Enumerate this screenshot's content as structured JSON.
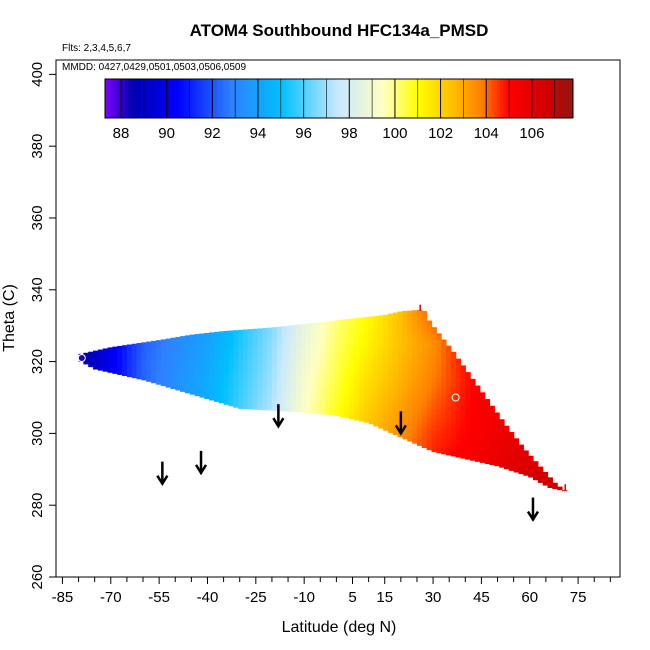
{
  "chart_data": {
    "type": "heatmap",
    "title": "ATOM4 Southbound HFC134a_PMSD",
    "subtitle_flights": "Flts: 2,3,4,5,6,7",
    "subtitle_dates": "MMDD: 0427,0429,0501,0503,0506,0509",
    "xlabel": "Latitude (deg N)",
    "ylabel": "Theta (C)",
    "xlim": [
      -87,
      88
    ],
    "ylim": [
      260,
      404
    ],
    "x_ticks": [
      -85,
      -70,
      -55,
      -40,
      -25,
      -10,
      5,
      15,
      30,
      45,
      60,
      75
    ],
    "x_minor_ticks": [
      -80,
      -75,
      -65,
      -60,
      -50,
      -45,
      -35,
      -30,
      -20,
      -15,
      -5,
      0,
      10,
      20,
      25,
      35,
      40,
      50,
      55,
      65,
      70,
      80,
      85
    ],
    "y_ticks": [
      260,
      280,
      300,
      320,
      340,
      360,
      380,
      400
    ],
    "colorbar": {
      "min": 87.3,
      "max": 107.8,
      "ticks": [
        88,
        90,
        92,
        94,
        96,
        98,
        100,
        102,
        104,
        106
      ],
      "colors": [
        "#8000ff",
        "#0000b0",
        "#0000ff",
        "#2f80ff",
        "#00bfff",
        "#c8e8ff",
        "#ffffc0",
        "#ffff00",
        "#ffc000",
        "#ff8000",
        "#ff0000",
        "#cc0000",
        "#8b1a1a"
      ],
      "color_stops": [
        87.3,
        88.5,
        90.5,
        92.8,
        95.0,
        97.5,
        99.5,
        101.0,
        102.5,
        103.8,
        105.0,
        106.8,
        107.8
      ]
    },
    "field": {
      "lat_start": -80,
      "lat_end": 71,
      "theta_top": [
        [
          -80,
          322
        ],
        [
          -70,
          324
        ],
        [
          -55,
          326
        ],
        [
          -45,
          327.5
        ],
        [
          -35,
          328.5
        ],
        [
          -20,
          329.5
        ],
        [
          -10,
          330.5
        ],
        [
          5,
          332
        ],
        [
          15,
          333
        ],
        [
          20,
          334
        ],
        [
          27,
          334.5
        ],
        [
          29,
          331
        ],
        [
          36,
          323
        ],
        [
          44,
          313
        ],
        [
          52,
          303
        ],
        [
          58,
          296
        ],
        [
          64,
          290
        ],
        [
          68,
          286
        ],
        [
          71,
          284
        ]
      ],
      "theta_bottom": [
        [
          -80,
          320.5
        ],
        [
          -75,
          318
        ],
        [
          -60,
          315
        ],
        [
          -45,
          311
        ],
        [
          -30,
          307
        ],
        [
          -20,
          306.5
        ],
        [
          -10,
          306
        ],
        [
          0,
          305
        ],
        [
          10,
          303
        ],
        [
          20,
          299
        ],
        [
          30,
          295
        ],
        [
          40,
          293
        ],
        [
          50,
          291
        ],
        [
          60,
          288
        ],
        [
          66,
          285
        ],
        [
          71,
          284
        ]
      ],
      "grid": {
        "lat": [
          -80,
          -60,
          -40,
          -20,
          -10,
          0,
          10,
          20,
          30,
          40,
          50,
          60,
          71
        ],
        "theta": [
          284,
          300,
          315,
          325,
          335
        ],
        "values": [
          [
            88.0,
            92.5,
            94.5,
            97.5,
            99.5,
            101.5,
            103.0,
            104.0,
            105.0,
            105.5,
            106.0,
            106.5,
            107.0
          ],
          [
            88.0,
            92.5,
            94.5,
            97.5,
            99.5,
            101.0,
            102.5,
            103.5,
            104.5,
            105.0,
            105.5,
            106.0,
            106.5
          ],
          [
            88.0,
            92.3,
            94.3,
            97.0,
            99.2,
            100.5,
            101.8,
            102.8,
            103.8,
            104.8,
            105.5,
            106.0,
            106.5
          ],
          [
            88.0,
            92.2,
            94.0,
            96.8,
            98.8,
            100.2,
            101.3,
            102.5,
            103.5,
            105.0,
            105.5,
            106.0,
            106.5
          ],
          [
            88.0,
            92.0,
            93.8,
            96.5,
            98.5,
            100.0,
            101.0,
            102.5,
            104.5,
            105.5,
            106.0,
            106.5,
            107.0
          ]
        ]
      }
    },
    "markers": [
      {
        "lat": -79,
        "theta": 321
      },
      {
        "lat": 37,
        "theta": 310
      }
    ],
    "ticks_top": [
      {
        "lat": 26,
        "theta": 335
      },
      {
        "lat": 71,
        "theta": 285
      }
    ],
    "flight_arrows": [
      {
        "lat": -54,
        "theta": 286
      },
      {
        "lat": -42,
        "theta": 289
      },
      {
        "lat": -18,
        "theta": 302
      },
      {
        "lat": 20,
        "theta": 300
      },
      {
        "lat": 61,
        "theta": 276
      }
    ]
  }
}
